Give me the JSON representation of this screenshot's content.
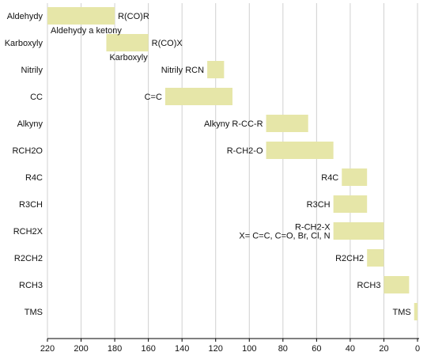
{
  "chart_data": {
    "type": "bar",
    "orientation": "horizontal-range",
    "xlim": [
      220,
      0
    ],
    "x_reversed": true,
    "xticks": [
      220,
      200,
      180,
      160,
      140,
      120,
      100,
      80,
      60,
      40,
      20,
      0
    ],
    "grid": "vertical",
    "bar_color": "#e6e6a8",
    "grid_color": "#d0d0d0",
    "categories": [
      "Aldehydy",
      "Karboxyly",
      "Nitrily",
      "CC",
      "Alkyny",
      "RCH2O",
      "R4C",
      "R3CH",
      "RCH2X",
      "R2CH2",
      "RCH3",
      "TMS"
    ],
    "ranges": [
      {
        "category": "Aldehydy",
        "from": 220,
        "to": 180
      },
      {
        "category": "Karboxyly",
        "from": 185,
        "to": 160
      },
      {
        "category": "Nitrily",
        "from": 125,
        "to": 115
      },
      {
        "category": "CC",
        "from": 150,
        "to": 110
      },
      {
        "category": "Alkyny",
        "from": 90,
        "to": 65
      },
      {
        "category": "RCH2O",
        "from": 90,
        "to": 50
      },
      {
        "category": "R4C",
        "from": 45,
        "to": 30
      },
      {
        "category": "R3CH",
        "from": 50,
        "to": 30
      },
      {
        "category": "RCH2X",
        "from": 50,
        "to": 20
      },
      {
        "category": "R2CH2",
        "from": 30,
        "to": 20
      },
      {
        "category": "RCH3",
        "from": 20,
        "to": 5
      },
      {
        "category": "TMS",
        "from": 2,
        "to": 0
      }
    ],
    "annotations": [
      {
        "text": "R(CO)R",
        "side": "right",
        "anchor": 180,
        "row": 0,
        "line": 0
      },
      {
        "text": "Aldehydy a ketony",
        "side": "below",
        "anchor": 220,
        "row": 0,
        "line": 0
      },
      {
        "text": "R(CO)X",
        "side": "right",
        "anchor": 160,
        "row": 1,
        "line": 0
      },
      {
        "text": "Karboxyly",
        "side": "below",
        "anchor": 185,
        "row": 1,
        "line": 0
      },
      {
        "text": "Nitrily RCN",
        "side": "left",
        "anchor": 125,
        "row": 2,
        "line": 0
      },
      {
        "text": "C=C",
        "side": "left",
        "anchor": 150,
        "row": 3,
        "line": 0
      },
      {
        "text": "Alkyny R-CC-R",
        "side": "left",
        "anchor": 90,
        "row": 4,
        "line": 0
      },
      {
        "text": "R-CH2-O",
        "side": "left",
        "anchor": 90,
        "row": 5,
        "line": 0
      },
      {
        "text": "R4C",
        "side": "left",
        "anchor": 45,
        "row": 6,
        "line": 0
      },
      {
        "text": "R3CH",
        "side": "left",
        "anchor": 50,
        "row": 7,
        "line": 0
      },
      {
        "text": "R-CH2-X",
        "side": "left",
        "anchor": 50,
        "row": 8,
        "line": -1
      },
      {
        "text": "X= C=C, C=O, Br, Cl, N",
        "side": "left",
        "anchor": 50,
        "row": 8,
        "line": 1
      },
      {
        "text": "R2CH2",
        "side": "left",
        "anchor": 30,
        "row": 9,
        "line": 0
      },
      {
        "text": "RCH3",
        "side": "left",
        "anchor": 20,
        "row": 10,
        "line": 0
      },
      {
        "text": "TMS",
        "side": "left",
        "anchor": 2,
        "row": 11,
        "line": 0
      }
    ]
  }
}
